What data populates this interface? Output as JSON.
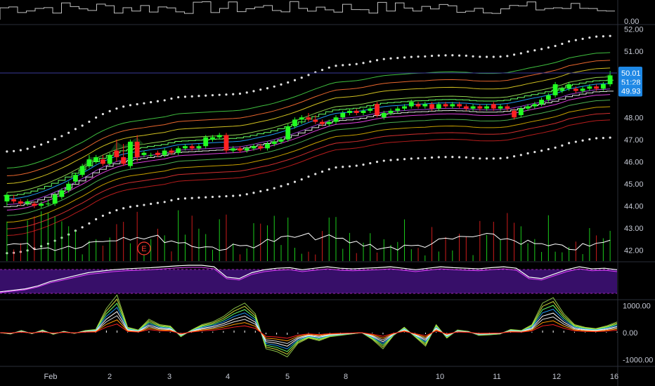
{
  "colors": {
    "background": "#000000",
    "up": "#22ff22",
    "down": "#ff2222",
    "price_line": "#3a3a9a",
    "axis_text": "#c7cbd6",
    "label_bg": "#1e88e5"
  },
  "chart_data": [
    {
      "type": "line",
      "panel": "top volume",
      "ylabels": [
        "0.00"
      ]
    },
    {
      "type": "candlestick",
      "panel": "main price",
      "ylim": [
        41.5,
        52.2
      ],
      "yticks": [
        {
          "label": "52.00",
          "v": 52
        },
        {
          "label": "51.00",
          "v": 51
        },
        {
          "label": "48.00",
          "v": 48
        },
        {
          "label": "47.00",
          "v": 47
        },
        {
          "label": "46.00",
          "v": 46
        },
        {
          "label": "45.00",
          "v": 45
        },
        {
          "label": "44.00",
          "v": 44
        },
        {
          "label": "43.00",
          "v": 43
        },
        {
          "label": "42.00",
          "v": 42
        }
      ],
      "price_labels": [
        {
          "label": "50.01",
          "v": 50.01
        },
        {
          "label": "51:28",
          "v": 49.6
        },
        {
          "label": "49.93",
          "v": 49.2
        }
      ],
      "candles": [
        {
          "o": 44.2,
          "h": 44.6,
          "c": 44.5,
          "l": 44.0
        },
        {
          "o": 44.3,
          "h": 44.5,
          "c": 44.2,
          "l": 44.1
        },
        {
          "o": 44.2,
          "h": 44.3,
          "c": 44.1,
          "l": 44.0
        },
        {
          "o": 44.1,
          "h": 44.3,
          "c": 44.2,
          "l": 44.0
        },
        {
          "o": 44.1,
          "h": 44.2,
          "c": 44.0,
          "l": 43.9
        },
        {
          "o": 44.0,
          "h": 44.2,
          "c": 44.1,
          "l": 43.9
        },
        {
          "o": 44.1,
          "h": 44.3,
          "c": 44.1,
          "l": 44.0
        },
        {
          "o": 44.1,
          "h": 44.6,
          "c": 44.5,
          "l": 44.0
        },
        {
          "o": 44.4,
          "h": 44.8,
          "c": 44.7,
          "l": 44.3
        },
        {
          "o": 44.7,
          "h": 45.1,
          "c": 45.0,
          "l": 44.6
        },
        {
          "o": 45.1,
          "h": 45.5,
          "c": 45.4,
          "l": 45.0
        },
        {
          "o": 45.4,
          "h": 45.9,
          "c": 45.8,
          "l": 45.3
        },
        {
          "o": 45.8,
          "h": 46.3,
          "c": 46.1,
          "l": 45.7
        },
        {
          "o": 46.0,
          "h": 46.3,
          "c": 46.2,
          "l": 45.9
        },
        {
          "o": 46.1,
          "h": 46.3,
          "c": 45.9,
          "l": 45.8
        },
        {
          "o": 45.9,
          "h": 46.4,
          "c": 46.3,
          "l": 45.8
        },
        {
          "o": 46.5,
          "h": 47.0,
          "c": 46.2,
          "l": 46.0
        },
        {
          "o": 46.2,
          "h": 46.8,
          "c": 45.9,
          "l": 45.8
        },
        {
          "o": 45.8,
          "h": 47.0,
          "c": 46.9,
          "l": 45.7
        },
        {
          "o": 46.9,
          "h": 47.2,
          "c": 46.2,
          "l": 46.0
        },
        {
          "o": 46.3,
          "h": 46.5,
          "c": 46.4,
          "l": 46.2
        },
        {
          "o": 46.3,
          "h": 46.4,
          "c": 46.3,
          "l": 46.2
        },
        {
          "o": 46.4,
          "h": 46.5,
          "c": 46.3,
          "l": 46.2
        },
        {
          "o": 46.3,
          "h": 46.6,
          "c": 46.5,
          "l": 46.2
        },
        {
          "o": 46.5,
          "h": 46.6,
          "c": 46.4,
          "l": 46.3
        },
        {
          "o": 46.4,
          "h": 46.7,
          "c": 46.6,
          "l": 46.3
        },
        {
          "o": 46.6,
          "h": 46.8,
          "c": 46.7,
          "l": 46.5
        },
        {
          "o": 46.7,
          "h": 46.8,
          "c": 46.6,
          "l": 46.5
        },
        {
          "o": 46.6,
          "h": 46.8,
          "c": 46.7,
          "l": 46.5
        },
        {
          "o": 46.7,
          "h": 47.2,
          "c": 47.1,
          "l": 46.6
        },
        {
          "o": 47.0,
          "h": 47.2,
          "c": 47.1,
          "l": 46.9
        },
        {
          "o": 47.1,
          "h": 47.3,
          "c": 47.2,
          "l": 47.0
        },
        {
          "o": 47.2,
          "h": 47.3,
          "c": 46.5,
          "l": 46.4
        },
        {
          "o": 46.5,
          "h": 46.7,
          "c": 46.6,
          "l": 46.4
        },
        {
          "o": 46.6,
          "h": 46.7,
          "c": 46.5,
          "l": 46.4
        },
        {
          "o": 46.5,
          "h": 46.7,
          "c": 46.6,
          "l": 46.4
        },
        {
          "o": 46.6,
          "h": 46.8,
          "c": 46.7,
          "l": 46.5
        },
        {
          "o": 46.7,
          "h": 46.8,
          "c": 46.6,
          "l": 46.5
        },
        {
          "o": 46.6,
          "h": 46.9,
          "c": 46.8,
          "l": 46.5
        },
        {
          "o": 46.8,
          "h": 47.0,
          "c": 46.9,
          "l": 46.7
        },
        {
          "o": 46.9,
          "h": 47.1,
          "c": 47.0,
          "l": 46.8
        },
        {
          "o": 47.0,
          "h": 47.7,
          "c": 47.6,
          "l": 46.9
        },
        {
          "o": 47.6,
          "h": 48.0,
          "c": 47.9,
          "l": 47.5
        },
        {
          "o": 47.9,
          "h": 48.1,
          "c": 48.0,
          "l": 47.7
        },
        {
          "o": 48.0,
          "h": 48.2,
          "c": 47.9,
          "l": 47.8
        },
        {
          "o": 47.9,
          "h": 48.1,
          "c": 47.8,
          "l": 47.7
        },
        {
          "o": 47.8,
          "h": 47.9,
          "c": 47.7,
          "l": 47.6
        },
        {
          "o": 47.7,
          "h": 47.9,
          "c": 47.8,
          "l": 47.6
        },
        {
          "o": 47.8,
          "h": 48.1,
          "c": 48.0,
          "l": 47.7
        },
        {
          "o": 48.0,
          "h": 48.3,
          "c": 48.2,
          "l": 47.9
        },
        {
          "o": 48.2,
          "h": 48.4,
          "c": 48.3,
          "l": 48.1
        },
        {
          "o": 48.3,
          "h": 48.4,
          "c": 48.2,
          "l": 48.1
        },
        {
          "o": 48.2,
          "h": 48.4,
          "c": 48.3,
          "l": 48.1
        },
        {
          "o": 48.3,
          "h": 48.5,
          "c": 48.4,
          "l": 48.2
        },
        {
          "o": 48.6,
          "h": 48.7,
          "c": 48.1,
          "l": 48.0
        },
        {
          "o": 48.0,
          "h": 48.3,
          "c": 48.2,
          "l": 47.9
        },
        {
          "o": 48.2,
          "h": 48.4,
          "c": 48.3,
          "l": 48.1
        },
        {
          "o": 48.3,
          "h": 48.5,
          "c": 48.4,
          "l": 48.2
        },
        {
          "o": 48.4,
          "h": 48.6,
          "c": 48.5,
          "l": 48.3
        },
        {
          "o": 48.5,
          "h": 48.8,
          "c": 48.7,
          "l": 48.4
        },
        {
          "o": 48.6,
          "h": 48.7,
          "c": 48.5,
          "l": 48.4
        },
        {
          "o": 48.5,
          "h": 48.7,
          "c": 48.6,
          "l": 48.4
        },
        {
          "o": 48.6,
          "h": 48.7,
          "c": 48.4,
          "l": 48.3
        },
        {
          "o": 48.4,
          "h": 48.7,
          "c": 48.6,
          "l": 48.3
        },
        {
          "o": 48.6,
          "h": 48.7,
          "c": 48.5,
          "l": 48.4
        },
        {
          "o": 48.5,
          "h": 48.7,
          "c": 48.6,
          "l": 48.4
        },
        {
          "o": 48.6,
          "h": 48.7,
          "c": 48.5,
          "l": 48.4
        },
        {
          "o": 48.5,
          "h": 48.6,
          "c": 48.4,
          "l": 48.3
        },
        {
          "o": 48.4,
          "h": 48.6,
          "c": 48.5,
          "l": 48.3
        },
        {
          "o": 48.5,
          "h": 48.6,
          "c": 48.4,
          "l": 48.3
        },
        {
          "o": 48.4,
          "h": 48.6,
          "c": 48.5,
          "l": 48.3
        },
        {
          "o": 48.6,
          "h": 48.7,
          "c": 48.4,
          "l": 48.3
        },
        {
          "o": 48.4,
          "h": 48.6,
          "c": 48.5,
          "l": 48.3
        },
        {
          "o": 48.5,
          "h": 48.6,
          "c": 48.4,
          "l": 48.3
        },
        {
          "o": 48.3,
          "h": 48.4,
          "c": 48.0,
          "l": 47.9
        },
        {
          "o": 48.1,
          "h": 48.5,
          "c": 48.4,
          "l": 48.0
        },
        {
          "o": 48.4,
          "h": 48.6,
          "c": 48.5,
          "l": 48.3
        },
        {
          "o": 48.5,
          "h": 48.7,
          "c": 48.6,
          "l": 48.4
        },
        {
          "o": 48.6,
          "h": 48.9,
          "c": 48.8,
          "l": 48.5
        },
        {
          "o": 48.8,
          "h": 49.1,
          "c": 49.0,
          "l": 48.7
        },
        {
          "o": 49.0,
          "h": 49.6,
          "c": 49.5,
          "l": 48.9
        },
        {
          "o": 49.2,
          "h": 49.4,
          "c": 49.3,
          "l": 49.1
        },
        {
          "o": 49.3,
          "h": 49.6,
          "c": 49.5,
          "l": 49.2
        },
        {
          "o": 49.3,
          "h": 49.4,
          "c": 49.2,
          "l": 49.1
        },
        {
          "o": 49.2,
          "h": 49.4,
          "c": 49.3,
          "l": 49.1
        },
        {
          "o": 49.3,
          "h": 49.5,
          "c": 49.4,
          "l": 49.2
        },
        {
          "o": 49.4,
          "h": 49.5,
          "c": 49.3,
          "l": 49.2
        },
        {
          "o": 49.3,
          "h": 49.6,
          "c": 49.5,
          "l": 49.2
        },
        {
          "o": 49.5,
          "h": 50.1,
          "c": 49.9,
          "l": 49.4
        }
      ]
    },
    {
      "type": "area",
      "panel": "oscillator",
      "values": [
        0.1,
        0.15,
        0.2,
        0.3,
        0.45,
        0.55,
        0.65,
        0.75,
        0.8,
        0.85,
        0.88,
        0.9,
        0.92,
        0.95,
        0.98,
        1.0,
        1.0,
        0.95,
        0.6,
        0.55,
        0.75,
        0.85,
        0.9,
        0.92,
        0.85,
        0.9,
        0.95,
        0.9,
        0.88,
        0.9,
        0.92,
        0.95,
        0.9,
        0.85,
        0.9,
        0.95,
        0.92,
        0.9,
        0.88,
        0.92,
        0.95,
        0.9,
        0.6,
        0.55,
        0.7,
        0.85,
        0.95,
        0.88,
        0.9,
        0.85
      ]
    },
    {
      "type": "line",
      "panel": "bottom oscillator",
      "ylim": [
        -1200,
        1200
      ],
      "yticks": [
        {
          "label": "1000.00",
          "v": 1000
        },
        {
          "label": "0.00",
          "v": 0
        },
        {
          "label": "-1000.00",
          "v": -1000
        }
      ],
      "values": [
        0,
        -50,
        80,
        -40,
        100,
        -60,
        50,
        -30,
        80,
        120,
        900,
        1400,
        200,
        100,
        500,
        300,
        250,
        -150,
        100,
        300,
        400,
        600,
        900,
        1100,
        700,
        -600,
        -700,
        -900,
        -400,
        -200,
        -300,
        -150,
        -100,
        -50,
        0,
        -250,
        -600,
        -100,
        200,
        -150,
        -500,
        300,
        -200,
        100,
        50,
        -100,
        -80,
        -50,
        120,
        80,
        300,
        1100,
        1300,
        700,
        300,
        200,
        150,
        250,
        400
      ]
    },
    {
      "type": "axis",
      "panel": "x-axis",
      "xticks": [
        "Feb",
        "2",
        "3",
        "4",
        "5",
        "8",
        "10",
        "11",
        "12",
        "16"
      ]
    }
  ],
  "annotations": {
    "event_marker": "E"
  }
}
